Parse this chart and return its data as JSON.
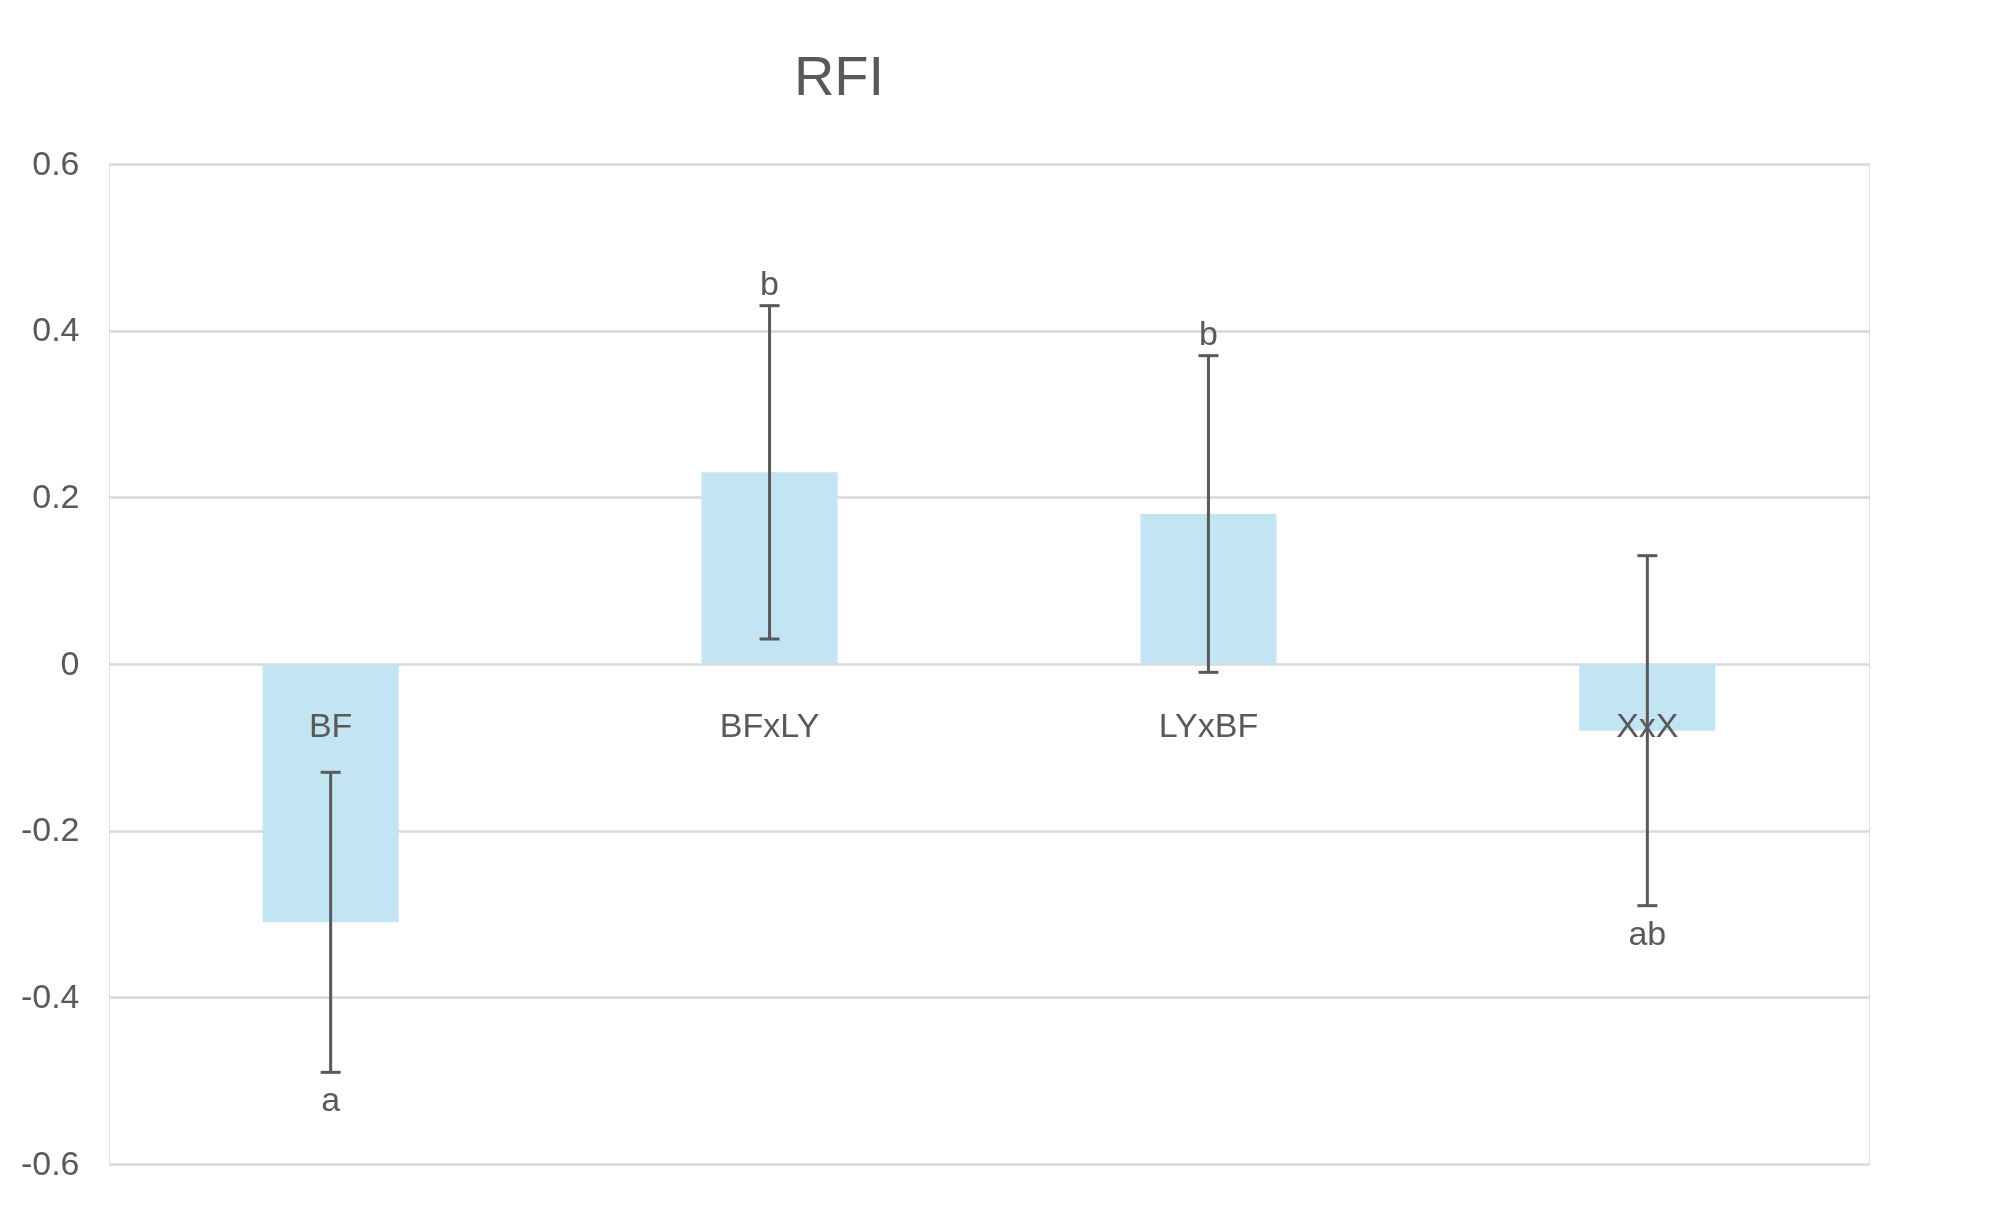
{
  "chart_data": {
    "type": "bar",
    "title": "RFI",
    "categories": [
      "BF",
      "BFxLY",
      "LYxBF",
      "XxX"
    ],
    "values": [
      -0.31,
      0.23,
      0.18,
      -0.08
    ],
    "errors": [
      0.18,
      0.2,
      0.19,
      0.21
    ],
    "color": "#c2e4f3",
    "ylim": [
      -0.6,
      0.6
    ],
    "yticks": [
      -0.6,
      -0.4,
      -0.2,
      0,
      0.2,
      0.4,
      0.6
    ],
    "grid": "y",
    "annotations": [
      {
        "text": "a",
        "x": "BF",
        "y": -0.49
      },
      {
        "text": "b",
        "x": "BFxLY",
        "y": 0.43
      },
      {
        "text": "b",
        "x": "LYxBF",
        "y": 0.37
      },
      {
        "text": "ab",
        "x": "XxX",
        "y": -0.29
      }
    ]
  }
}
